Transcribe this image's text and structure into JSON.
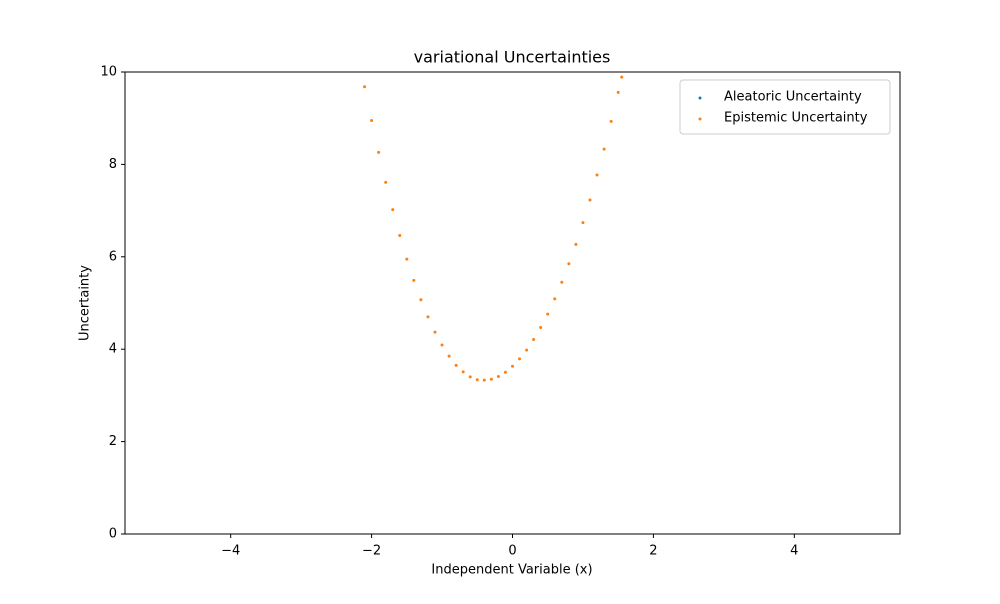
{
  "chart_data": {
    "type": "scatter",
    "title": "variational Uncertainties",
    "x_label": "Independent Variable (x)",
    "y_label": "Uncertainty",
    "xlim": [
      -5.5,
      5.5
    ],
    "xticks": [
      {
        "value": -4,
        "label": "−4"
      },
      {
        "value": -2,
        "label": "−2"
      },
      0,
      2,
      4
    ],
    "ylim": [
      0,
      10
    ],
    "yticks": [
      0,
      2,
      4,
      6,
      8,
      10
    ],
    "grid": false,
    "legend": "upper right",
    "series": [
      {
        "name": "Aleatoric Uncertainty",
        "color": "#1f77b4",
        "x": [],
        "values": []
      },
      {
        "name": "Epistemic Uncertainty",
        "color": "#ff7f0e",
        "x": [
          -2.1,
          -2.0,
          -1.9,
          -1.8,
          -1.7,
          -1.6,
          -1.5,
          -1.4,
          -1.3,
          -1.2,
          -1.1,
          -1.0,
          -0.9,
          -0.8,
          -0.7,
          -0.6,
          -0.5,
          -0.4,
          -0.3,
          -0.2,
          -0.1,
          0.0,
          0.1,
          0.2,
          0.3,
          0.4,
          0.5,
          0.6,
          0.7,
          0.8,
          0.9,
          1.0,
          1.1,
          1.2,
          1.3,
          1.4,
          1.5,
          1.55
        ],
        "values": [
          9.68,
          8.95,
          8.26,
          7.61,
          7.02,
          6.46,
          5.95,
          5.49,
          5.07,
          4.7,
          4.37,
          4.09,
          3.85,
          3.65,
          3.51,
          3.4,
          3.34,
          3.33,
          3.35,
          3.41,
          3.5,
          3.63,
          3.79,
          3.98,
          4.21,
          4.47,
          4.76,
          5.09,
          5.45,
          5.85,
          6.27,
          6.74,
          7.23,
          7.77,
          8.33,
          8.93,
          9.56,
          9.89
        ]
      }
    ]
  }
}
